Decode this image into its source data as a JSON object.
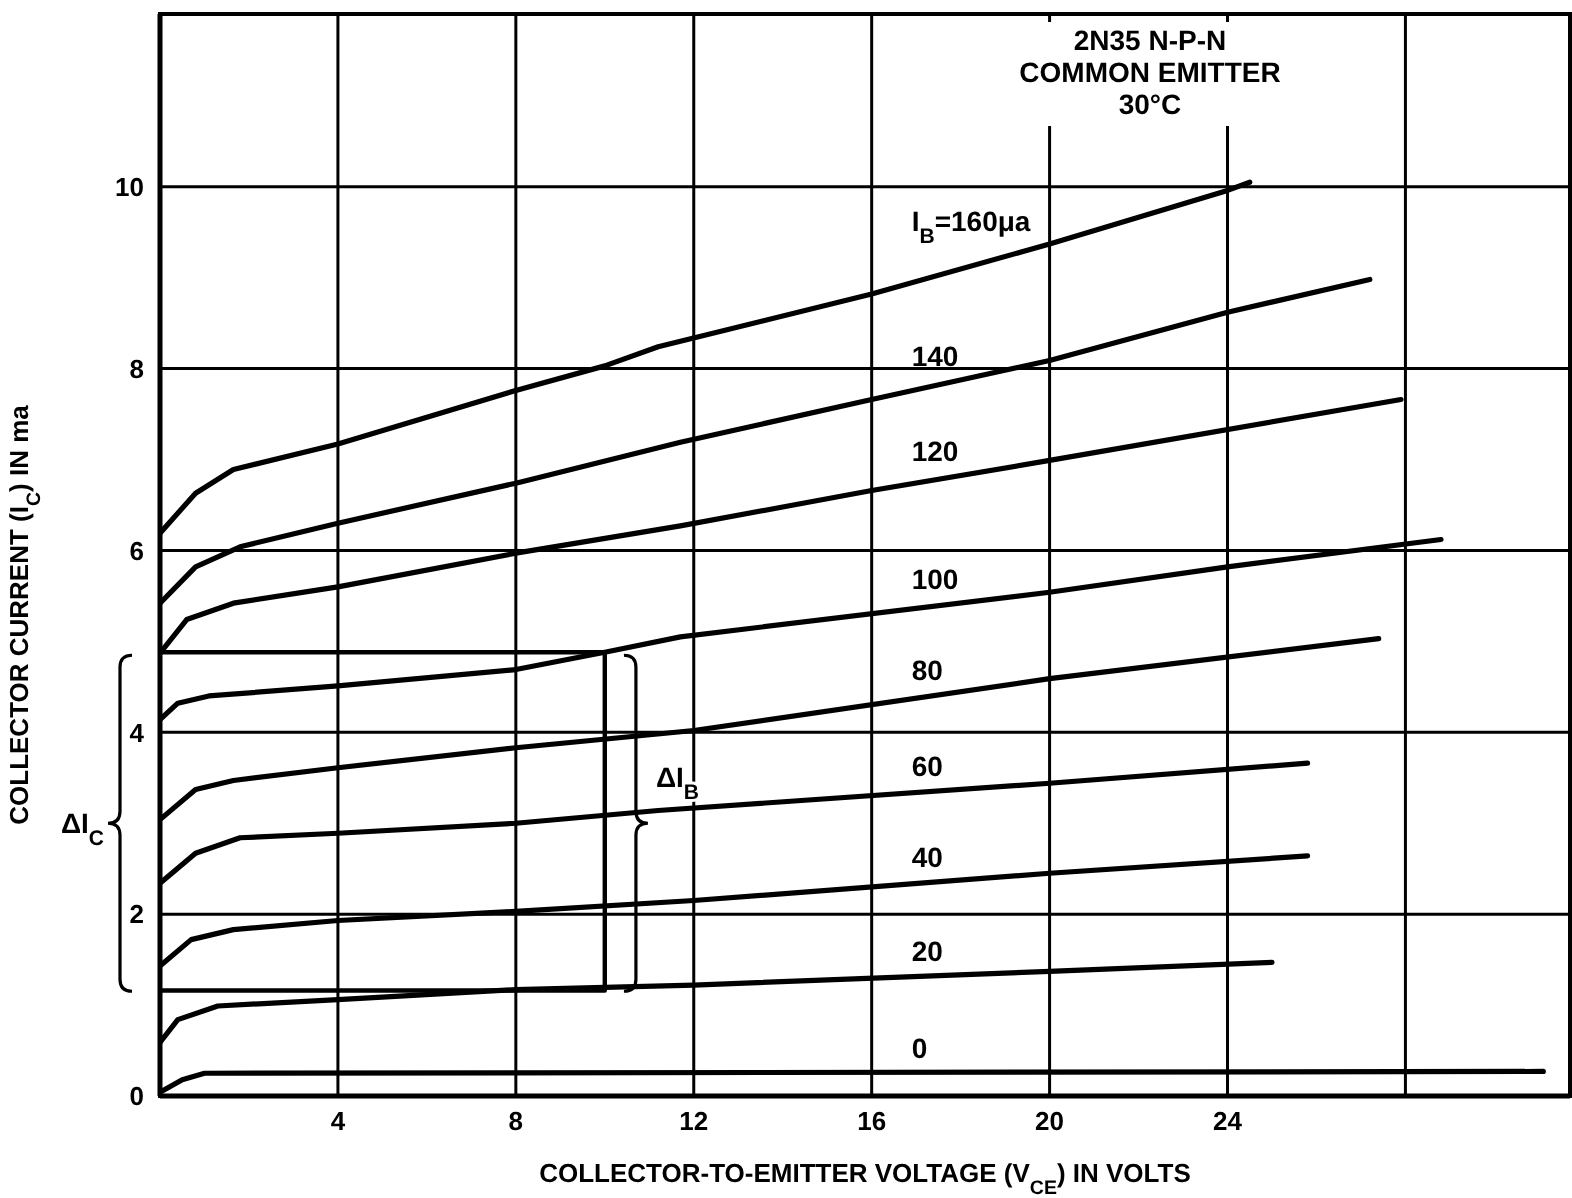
{
  "chart_data": {
    "type": "line",
    "xlabel": "COLLECTOR-TO-EMITTER VOLTAGE (V$_{CE}$) IN VOLTS",
    "ylabel": "COLLECTOR CURRENT (I$_{C}$) IN ma",
    "xlim": [
      0,
      31.7
    ],
    "ylim": [
      0,
      11.9
    ],
    "xticks": [
      4,
      8,
      12,
      16,
      20,
      24,
      {
        "value": 28,
        "label": null
      }
    ],
    "yticks": [
      0,
      2,
      4,
      6,
      8,
      10
    ],
    "grid": true,
    "series": [
      {
        "name": "0",
        "color": "#000000",
        "x": [
          0,
          0.5,
          1,
          31.1
        ],
        "values": [
          0.04,
          0.18,
          0.25,
          0.27
        ]
      },
      {
        "name": "20",
        "color": "#000000",
        "x": [
          0,
          0.4,
          1.3,
          4,
          8,
          12,
          20,
          25
        ],
        "values": [
          0.59,
          0.84,
          0.99,
          1.06,
          1.17,
          1.22,
          1.37,
          1.47
        ]
      },
      {
        "name": "40",
        "color": "#000000",
        "x": [
          0,
          0.7,
          1.65,
          4,
          8,
          12,
          20,
          25.8
        ],
        "values": [
          1.43,
          1.72,
          1.83,
          1.93,
          2.03,
          2.15,
          2.45,
          2.64
        ]
      },
      {
        "name": "60",
        "color": "#000000",
        "x": [
          0,
          0.8,
          1.8,
          4,
          8,
          11.2,
          20,
          25.8
        ],
        "values": [
          2.34,
          2.67,
          2.84,
          2.89,
          3.0,
          3.14,
          3.44,
          3.66
        ]
      },
      {
        "name": "80",
        "color": "#000000",
        "x": [
          0,
          0.8,
          1.65,
          4,
          8,
          12,
          20,
          27.4
        ],
        "values": [
          3.04,
          3.37,
          3.47,
          3.61,
          3.83,
          4.02,
          4.59,
          5.03
        ]
      },
      {
        "name": "100",
        "color": "#000000",
        "x": [
          0,
          0.4,
          1.1,
          4,
          8,
          10,
          11.7,
          20,
          24,
          28.8
        ],
        "values": [
          4.14,
          4.32,
          4.4,
          4.51,
          4.69,
          4.88,
          5.05,
          5.54,
          5.82,
          6.12
        ]
      },
      {
        "name": "120",
        "color": "#000000",
        "x": [
          0,
          0.6,
          1.65,
          4,
          8,
          11.7,
          16,
          20,
          27.9
        ],
        "values": [
          4.87,
          5.24,
          5.42,
          5.6,
          5.97,
          6.27,
          6.66,
          6.99,
          7.66
        ]
      },
      {
        "name": "140",
        "color": "#000000",
        "x": [
          0,
          0.8,
          1.8,
          4,
          8,
          11.7,
          16,
          20,
          24,
          27.2
        ],
        "values": [
          5.42,
          5.82,
          6.04,
          6.3,
          6.74,
          7.19,
          7.66,
          8.09,
          8.62,
          8.98
        ]
      },
      {
        "name": "I$_{B}$=160μa",
        "color": "#000000",
        "x": [
          0,
          0.8,
          1.65,
          4,
          8,
          10,
          11.2,
          16,
          20,
          24,
          24.5
        ],
        "values": [
          6.19,
          6.63,
          6.89,
          7.17,
          7.76,
          8.03,
          8.24,
          8.82,
          9.37,
          9.96,
          10.05
        ]
      },
      {
        "color": "#000000",
        "x": [
          0,
          10,
          10,
          0
        ],
        "values": [
          4.88,
          4.88,
          1.16,
          1.16
        ]
      }
    ],
    "annotations": [
      "2N35 N-P-N",
      "COMMON EMITTER",
      "30°C",
      {
        "text": "ΔI$_{C}$",
        "x": 0,
        "y": 3.0
      },
      {
        "text": "ΔI$_{B}$",
        "x": 10.7,
        "y": 3.0
      }
    ]
  }
}
